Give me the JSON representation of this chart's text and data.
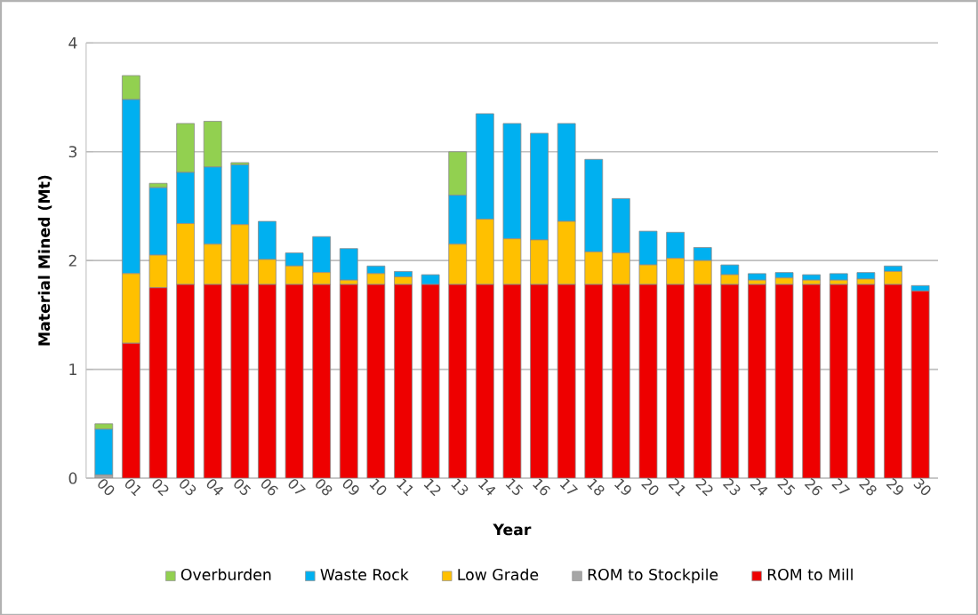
{
  "chart_data": {
    "type": "bar",
    "stacked": true,
    "xlabel": "Year",
    "ylabel": "Material Mined (Mt)",
    "categories": [
      "00",
      "01",
      "02",
      "03",
      "04",
      "05",
      "06",
      "07",
      "08",
      "09",
      "10",
      "11",
      "12",
      "13",
      "14",
      "15",
      "16",
      "17",
      "18",
      "19",
      "20",
      "21",
      "22",
      "23",
      "24",
      "25",
      "26",
      "27",
      "28",
      "29",
      "30"
    ],
    "series": [
      {
        "name": "ROM to Mill",
        "color": "#ee0000",
        "values": [
          0,
          1.24,
          1.75,
          1.78,
          1.78,
          1.78,
          1.78,
          1.78,
          1.78,
          1.78,
          1.78,
          1.78,
          1.78,
          1.78,
          1.78,
          1.78,
          1.78,
          1.78,
          1.78,
          1.78,
          1.78,
          1.78,
          1.78,
          1.78,
          1.78,
          1.78,
          1.78,
          1.78,
          1.78,
          1.78,
          1.72
        ]
      },
      {
        "name": "ROM to Stockpile",
        "color": "#a6a6a6",
        "values": [
          0.03,
          0,
          0,
          0,
          0,
          0,
          0,
          0,
          0,
          0,
          0,
          0,
          0,
          0,
          0,
          0,
          0,
          0,
          0,
          0,
          0,
          0,
          0,
          0,
          0,
          0,
          0,
          0,
          0,
          0,
          0
        ]
      },
      {
        "name": "Low Grade",
        "color": "#ffc000",
        "values": [
          0,
          0.64,
          0.3,
          0.56,
          0.37,
          0.55,
          0.23,
          0.17,
          0.11,
          0.04,
          0.1,
          0.07,
          0,
          0.37,
          0.6,
          0.42,
          0.41,
          0.58,
          0.3,
          0.29,
          0.18,
          0.24,
          0.22,
          0.09,
          0.04,
          0.06,
          0.04,
          0.04,
          0.05,
          0.12,
          0
        ]
      },
      {
        "name": "Waste Rock",
        "color": "#00b0f0",
        "values": [
          0.42,
          1.6,
          0.62,
          0.47,
          0.71,
          0.55,
          0.35,
          0.12,
          0.33,
          0.29,
          0.07,
          0.05,
          0.09,
          0.45,
          0.97,
          1.06,
          0.98,
          0.9,
          0.85,
          0.5,
          0.31,
          0.24,
          0.12,
          0.09,
          0.06,
          0.05,
          0.05,
          0.06,
          0.06,
          0.05,
          0.05
        ]
      },
      {
        "name": "Overburden",
        "color": "#92d050",
        "values": [
          0.05,
          0.22,
          0.04,
          0.45,
          0.42,
          0.02,
          0,
          0,
          0,
          0,
          0,
          0,
          0,
          0.4,
          0,
          0,
          0,
          0,
          0,
          0,
          0,
          0,
          0,
          0,
          0,
          0,
          0,
          0,
          0,
          0,
          0
        ]
      }
    ],
    "ylim": [
      0,
      4
    ],
    "yticks": [
      0,
      1,
      2,
      3,
      4
    ],
    "grid": "y",
    "legend": "bottom"
  }
}
